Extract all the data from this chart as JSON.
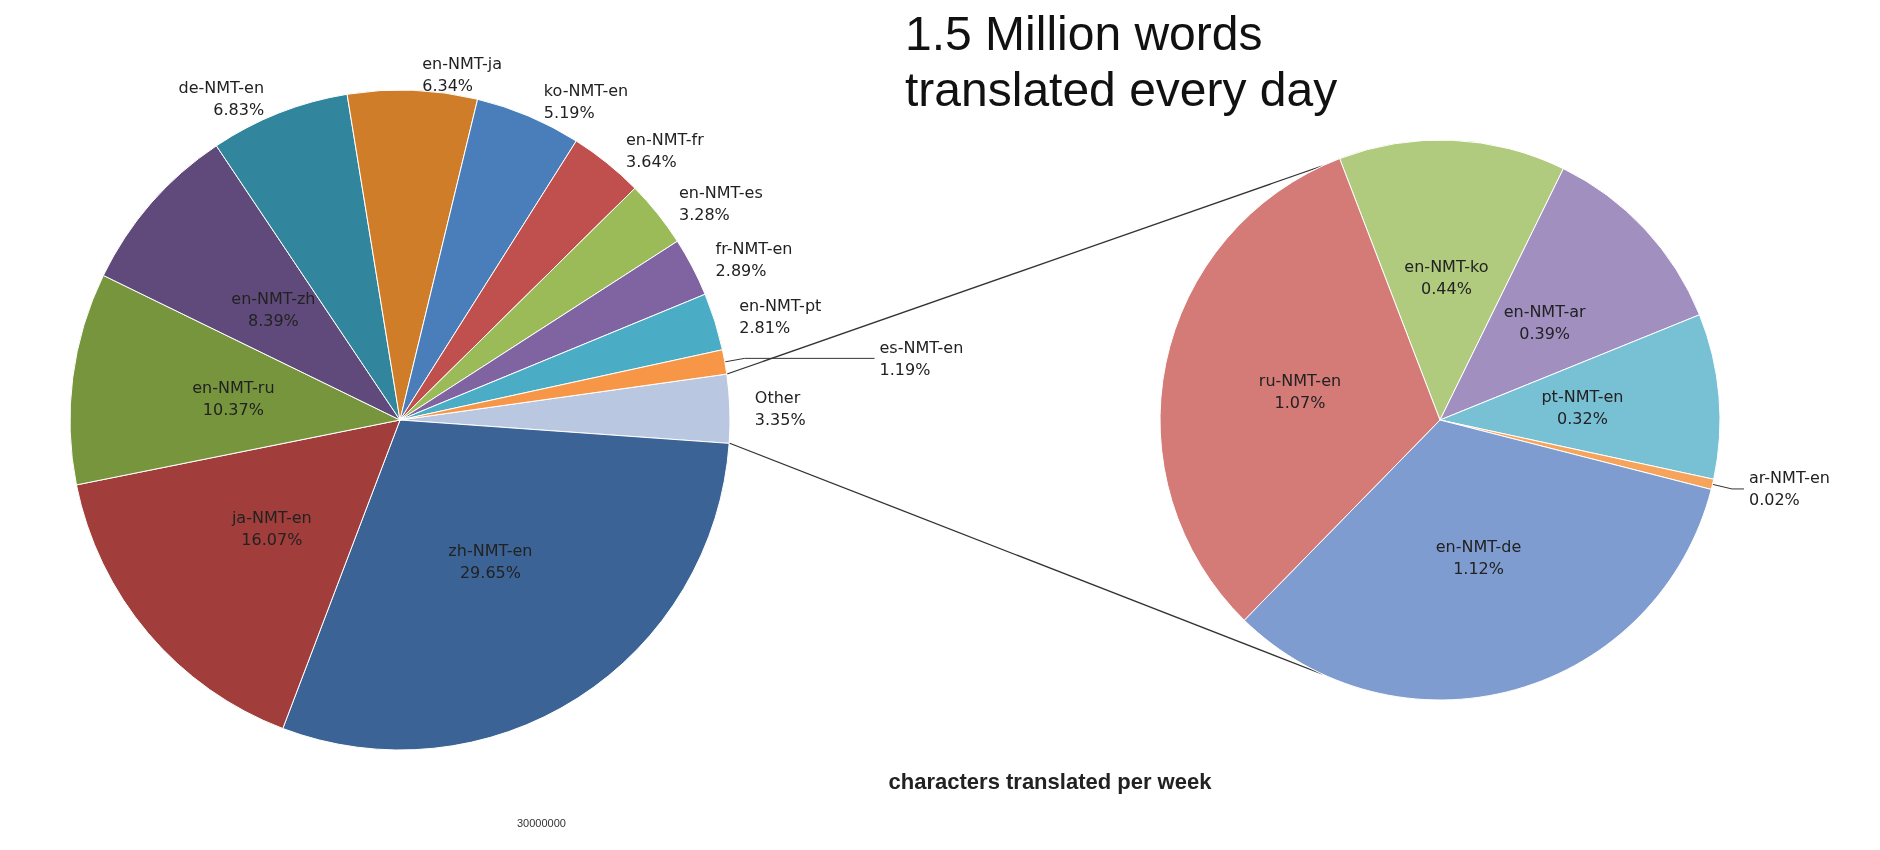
{
  "chart_data": [
    {
      "type": "pie",
      "title": "1.5 Million words translated every day",
      "categories": [
        "Other",
        "zh-NMT-en",
        "ja-NMT-en",
        "en-NMT-ru",
        "en-NMT-zh",
        "de-NMT-en",
        "en-NMT-ja",
        "ko-NMT-en",
        "en-NMT-fr",
        "en-NMT-es",
        "fr-NMT-en",
        "en-NMT-pt",
        "es-NMT-en"
      ],
      "values": [
        3.35,
        29.65,
        16.07,
        10.37,
        8.39,
        6.83,
        6.34,
        5.19,
        3.64,
        3.28,
        2.89,
        2.81,
        1.19
      ],
      "value_labels": [
        "3.35%",
        "29.65%",
        "16.07%",
        "10.37%",
        "8.39%",
        "6.83%",
        "6.34%",
        "5.19%",
        "3.64%",
        "3.28%",
        "2.89%",
        "2.81%",
        "1.19%"
      ],
      "colors": [
        "#b9c7e0",
        "#3c6396",
        "#a13d3b",
        "#77953d",
        "#5f4a7b",
        "#31859c",
        "#d07d2a",
        "#4a7ebb",
        "#c0504d",
        "#9bbb59",
        "#8064a2",
        "#4bacc6",
        "#f79646"
      ],
      "legend": false
    },
    {
      "type": "pie",
      "categories": [
        "en-NMT-ko",
        "en-NMT-ar",
        "pt-NMT-en",
        "ar-NMT-en",
        "en-NMT-de",
        "ru-NMT-en"
      ],
      "values": [
        0.44,
        0.39,
        0.32,
        0.02,
        1.12,
        1.07
      ],
      "value_labels": [
        "0.44%",
        "0.39%",
        "0.32%",
        "0.02%",
        "1.12%",
        "1.07%"
      ],
      "colors": [
        "#b0cb7e",
        "#a08fbf",
        "#78c0d4",
        "#f6a35c",
        "#7f9cd0",
        "#d47a77"
      ],
      "legend": false
    },
    {
      "type": "other",
      "title": "characters translated per week",
      "annotations": [
        "30000000"
      ]
    }
  ]
}
